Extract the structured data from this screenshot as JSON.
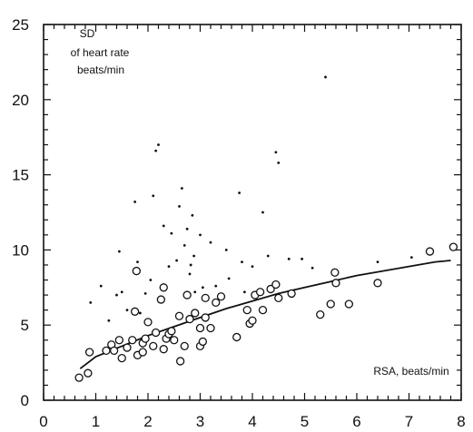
{
  "chart_data": {
    "type": "scatter",
    "title": "",
    "xlabel": "RSA, beats/min",
    "ylabel": "SD of heart rate beats/min",
    "ylabel_lines": [
      "SD",
      "of heart rate",
      "beats/min"
    ],
    "xlim": [
      0,
      8
    ],
    "ylim": [
      0,
      25
    ],
    "x_ticks": [
      "0",
      "1",
      "2",
      "3",
      "4",
      "5",
      "6",
      "7",
      "8"
    ],
    "y_ticks": [
      "0",
      "5",
      "10",
      "15",
      "20",
      "25"
    ],
    "grid": false,
    "series": [
      {
        "marker": "open-circle",
        "points": [
          [
            0.68,
            1.5
          ],
          [
            0.85,
            1.8
          ],
          [
            0.88,
            3.2
          ],
          [
            1.2,
            3.3
          ],
          [
            1.3,
            3.7
          ],
          [
            1.35,
            3.3
          ],
          [
            1.45,
            4.0
          ],
          [
            1.5,
            2.8
          ],
          [
            1.6,
            3.5
          ],
          [
            1.7,
            4.0
          ],
          [
            1.75,
            5.9
          ],
          [
            1.78,
            8.6
          ],
          [
            1.8,
            3.0
          ],
          [
            1.9,
            3.8
          ],
          [
            1.9,
            3.2
          ],
          [
            1.95,
            4.1
          ],
          [
            2.0,
            5.2
          ],
          [
            2.1,
            3.6
          ],
          [
            2.15,
            4.5
          ],
          [
            2.25,
            6.7
          ],
          [
            2.3,
            3.4
          ],
          [
            2.3,
            7.5
          ],
          [
            2.35,
            4.1
          ],
          [
            2.4,
            4.4
          ],
          [
            2.45,
            4.6
          ],
          [
            2.5,
            4.0
          ],
          [
            2.6,
            5.6
          ],
          [
            2.62,
            2.6
          ],
          [
            2.7,
            3.6
          ],
          [
            2.75,
            7.0
          ],
          [
            2.8,
            5.4
          ],
          [
            2.9,
            5.8
          ],
          [
            3.0,
            4.8
          ],
          [
            3.0,
            3.6
          ],
          [
            3.05,
            3.9
          ],
          [
            3.1,
            5.5
          ],
          [
            3.1,
            6.8
          ],
          [
            3.2,
            4.8
          ],
          [
            3.3,
            6.5
          ],
          [
            3.4,
            6.9
          ],
          [
            3.7,
            4.2
          ],
          [
            3.9,
            6.0
          ],
          [
            3.95,
            5.1
          ],
          [
            4.0,
            5.3
          ],
          [
            4.05,
            7.0
          ],
          [
            4.15,
            7.2
          ],
          [
            4.2,
            6.0
          ],
          [
            4.35,
            7.4
          ],
          [
            4.45,
            7.7
          ],
          [
            4.5,
            6.8
          ],
          [
            4.75,
            7.1
          ],
          [
            5.3,
            5.7
          ],
          [
            5.5,
            6.4
          ],
          [
            5.58,
            8.5
          ],
          [
            5.6,
            7.8
          ],
          [
            5.85,
            6.4
          ],
          [
            6.4,
            7.8
          ],
          [
            7.4,
            9.9
          ],
          [
            7.85,
            10.2
          ]
        ]
      },
      {
        "marker": "dot",
        "points": [
          [
            0.9,
            6.5
          ],
          [
            1.1,
            7.6
          ],
          [
            1.25,
            5.3
          ],
          [
            1.4,
            7.0
          ],
          [
            1.45,
            9.9
          ],
          [
            1.5,
            7.2
          ],
          [
            1.6,
            6.0
          ],
          [
            1.75,
            13.2
          ],
          [
            1.8,
            9.2
          ],
          [
            1.85,
            5.8
          ],
          [
            1.95,
            7.1
          ],
          [
            2.05,
            8.0
          ],
          [
            2.1,
            13.6
          ],
          [
            2.15,
            16.6
          ],
          [
            2.2,
            17.0
          ],
          [
            2.3,
            11.6
          ],
          [
            2.4,
            8.9
          ],
          [
            2.45,
            11.1
          ],
          [
            2.55,
            9.3
          ],
          [
            2.6,
            12.9
          ],
          [
            2.65,
            14.1
          ],
          [
            2.7,
            10.3
          ],
          [
            2.75,
            11.4
          ],
          [
            2.8,
            8.4
          ],
          [
            2.82,
            9.0
          ],
          [
            2.85,
            12.3
          ],
          [
            2.88,
            9.6
          ],
          [
            2.9,
            7.2
          ],
          [
            3.0,
            11.0
          ],
          [
            3.05,
            7.5
          ],
          [
            3.2,
            10.5
          ],
          [
            3.3,
            7.6
          ],
          [
            3.5,
            10.0
          ],
          [
            3.55,
            8.1
          ],
          [
            3.75,
            13.8
          ],
          [
            3.8,
            9.2
          ],
          [
            3.85,
            7.2
          ],
          [
            4.0,
            8.9
          ],
          [
            4.2,
            12.5
          ],
          [
            4.3,
            9.6
          ],
          [
            4.45,
            16.5
          ],
          [
            4.5,
            15.8
          ],
          [
            4.7,
            9.4
          ],
          [
            4.95,
            9.4
          ],
          [
            5.15,
            8.8
          ],
          [
            5.4,
            21.5
          ],
          [
            6.4,
            9.2
          ],
          [
            7.05,
            9.5
          ]
        ]
      }
    ],
    "fit_line": [
      [
        0.7,
        2.1
      ],
      [
        1.0,
        2.9
      ],
      [
        1.5,
        3.6
      ],
      [
        2.0,
        4.3
      ],
      [
        2.5,
        4.9
      ],
      [
        3.0,
        5.5
      ],
      [
        3.5,
        6.1
      ],
      [
        4.0,
        6.6
      ],
      [
        4.5,
        7.1
      ],
      [
        5.0,
        7.5
      ],
      [
        5.5,
        7.9
      ],
      [
        6.0,
        8.3
      ],
      [
        6.5,
        8.6
      ],
      [
        7.0,
        8.9
      ],
      [
        7.5,
        9.2
      ],
      [
        7.8,
        9.3
      ]
    ]
  }
}
